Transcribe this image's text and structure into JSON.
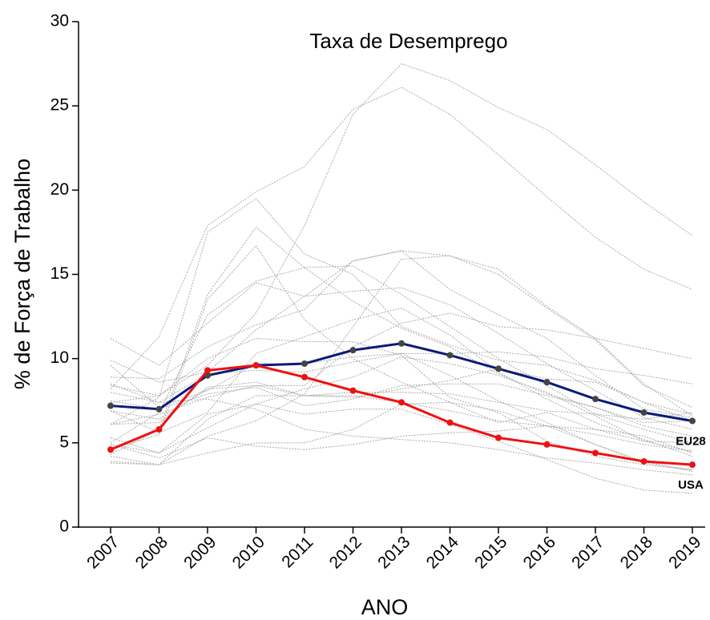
{
  "chart_data": {
    "type": "line",
    "title": "Taxa de Desemprego",
    "xlabel": "ANO",
    "ylabel": "% de Força de Trabalho",
    "categories": [
      "2007",
      "2008",
      "2009",
      "2010",
      "2011",
      "2012",
      "2013",
      "2014",
      "2015",
      "2016",
      "2017",
      "2018",
      "2019"
    ],
    "ylim": [
      0,
      30
    ],
    "yticks": [
      0,
      5,
      10,
      15,
      20,
      25,
      30
    ],
    "series": [
      {
        "color": "#aaaaaa",
        "values": [
          8.4,
          7.8,
          9.6,
          12.7,
          17.9,
          24.5,
          27.5,
          26.5,
          24.9,
          23.6,
          21.5,
          19.3,
          17.3
        ]
      },
      {
        "color": "#aaaaaa",
        "values": [
          8.2,
          11.3,
          17.9,
          19.9,
          21.4,
          24.8,
          26.1,
          24.5,
          22.1,
          19.6,
          17.2,
          15.3,
          14.1
        ]
      },
      {
        "color": "#aaaaaa",
        "values": [
          6.1,
          7.7,
          17.5,
          19.5,
          16.2,
          15.0,
          11.9,
          10.8,
          9.9,
          9.6,
          8.7,
          7.4,
          6.3
        ]
      },
      {
        "color": "#aaaaaa",
        "values": [
          4.3,
          5.8,
          13.8,
          17.8,
          15.4,
          13.4,
          11.8,
          10.7,
          9.1,
          7.9,
          7.1,
          6.2,
          6.3
        ]
      },
      {
        "color": "#aaaaaa",
        "values": [
          4.6,
          5.5,
          13.5,
          16.7,
          12.3,
          10.0,
          8.6,
          7.4,
          6.2,
          6.8,
          5.8,
          5.4,
          4.4
        ]
      },
      {
        "color": "#aaaaaa",
        "values": [
          9.9,
          8.6,
          9.2,
          11.7,
          13.7,
          15.8,
          16.4,
          16.1,
          15.3,
          13.1,
          11.2,
          8.5,
          6.6
        ]
      },
      {
        "color": "#aaaaaa",
        "values": [
          6.1,
          6.7,
          7.7,
          8.4,
          8.4,
          10.7,
          12.1,
          12.7,
          11.9,
          11.7,
          11.2,
          10.6,
          10.0
        ]
      },
      {
        "color": "#aaaaaa",
        "values": [
          8.9,
          8.8,
          10.7,
          12.0,
          12.9,
          15.8,
          16.4,
          14.1,
          12.6,
          11.2,
          9.0,
          7.0,
          6.5
        ]
      },
      {
        "color": "#aaaaaa",
        "values": [
          5.0,
          6.8,
          12.6,
          14.6,
          15.4,
          15.5,
          13.8,
          11.9,
          10.0,
          8.4,
          6.7,
          5.8,
          5.0
        ]
      },
      {
        "color": "#aaaaaa",
        "values": [
          8.0,
          7.4,
          9.1,
          9.3,
          9.2,
          9.8,
          10.3,
          10.3,
          10.4,
          10.1,
          9.4,
          9.0,
          8.5
        ]
      },
      {
        "color": "#aaaaaa",
        "values": [
          8.5,
          7.4,
          7.6,
          7.0,
          5.8,
          5.4,
          5.2,
          5.0,
          4.6,
          4.1,
          3.8,
          3.4,
          3.1
        ]
      },
      {
        "color": "#aaaaaa",
        "values": [
          5.3,
          4.4,
          6.7,
          7.3,
          6.7,
          7.0,
          7.0,
          6.1,
          5.1,
          4.0,
          2.9,
          2.2,
          2.0
        ]
      },
      {
        "color": "#aaaaaa",
        "values": [
          9.6,
          7.1,
          8.1,
          9.7,
          9.7,
          10.1,
          10.3,
          9.0,
          7.5,
          6.2,
          4.9,
          3.9,
          3.3
        ]
      },
      {
        "color": "#aaaaaa",
        "values": [
          11.2,
          9.6,
          12.1,
          14.5,
          13.7,
          14.0,
          14.2,
          13.2,
          11.5,
          9.7,
          8.1,
          6.5,
          5.8
        ]
      },
      {
        "color": "#aaaaaa",
        "values": [
          4.2,
          3.7,
          4.4,
          5.0,
          5.0,
          5.8,
          7.3,
          7.4,
          6.9,
          6.0,
          4.9,
          3.8,
          3.4
        ]
      },
      {
        "color": "#aaaaaa",
        "values": [
          4.9,
          4.1,
          5.3,
          4.8,
          4.6,
          4.9,
          5.4,
          5.6,
          5.7,
          6.0,
          5.5,
          4.9,
          4.5
        ]
      },
      {
        "color": "#aaaaaa",
        "values": [
          6.1,
          6.2,
          8.3,
          8.6,
          7.8,
          8.0,
          8.0,
          7.9,
          7.4,
          6.9,
          6.7,
          6.4,
          6.8
        ]
      },
      {
        "color": "#aaaaaa",
        "values": [
          6.9,
          6.4,
          8.2,
          8.4,
          7.8,
          7.7,
          8.2,
          8.7,
          9.4,
          8.8,
          8.6,
          7.4,
          6.7
        ]
      },
      {
        "color": "#aaaaaa",
        "values": [
          7.5,
          7.0,
          7.9,
          8.3,
          7.2,
          7.6,
          8.4,
          8.5,
          8.5,
          7.8,
          7.1,
          6.0,
          5.4
        ]
      },
      {
        "color": "#aaaaaa",
        "values": [
          3.8,
          3.7,
          6.4,
          7.8,
          7.8,
          7.8,
          7.4,
          6.9,
          6.3,
          6.0,
          5.8,
          5.1,
          5.0
        ]
      },
      {
        "color": "#aaaaaa",
        "values": [
          7.4,
          7.8,
          10.0,
          11.2,
          11.0,
          11.0,
          10.2,
          7.7,
          6.8,
          5.1,
          4.2,
          3.7,
          3.4
        ]
      },
      {
        "color": "#aaaaaa",
        "values": [
          6.9,
          5.6,
          6.8,
          10.3,
          11.3,
          12.3,
          13.0,
          11.4,
          9.2,
          7.6,
          6.2,
          5.2,
          4.2
        ]
      },
      {
        "color": "#aaaaaa",
        "values": [
          3.9,
          3.7,
          5.4,
          6.3,
          7.9,
          11.9,
          15.9,
          16.1,
          15.0,
          13.0,
          11.1,
          8.4,
          7.1
        ]
      },
      {
        "color": "#aaaaaa",
        "values": [
          4.9,
          4.4,
          5.9,
          7.3,
          8.2,
          8.9,
          10.1,
          9.7,
          9.0,
          8.0,
          6.6,
          5.1,
          4.5
        ]
      },
      {
        "name": "EU28",
        "color": "#0a1a7a",
        "marker_color": "#444444",
        "values": [
          7.2,
          7.0,
          9.0,
          9.6,
          9.7,
          10.5,
          10.9,
          10.2,
          9.4,
          8.6,
          7.6,
          6.8,
          6.3
        ]
      },
      {
        "name": "USA",
        "color": "#ee1111",
        "marker_color": "#ee1111",
        "values": [
          4.6,
          5.8,
          9.3,
          9.6,
          8.9,
          8.1,
          7.4,
          6.2,
          5.3,
          4.9,
          4.4,
          3.9,
          3.7
        ]
      }
    ]
  }
}
